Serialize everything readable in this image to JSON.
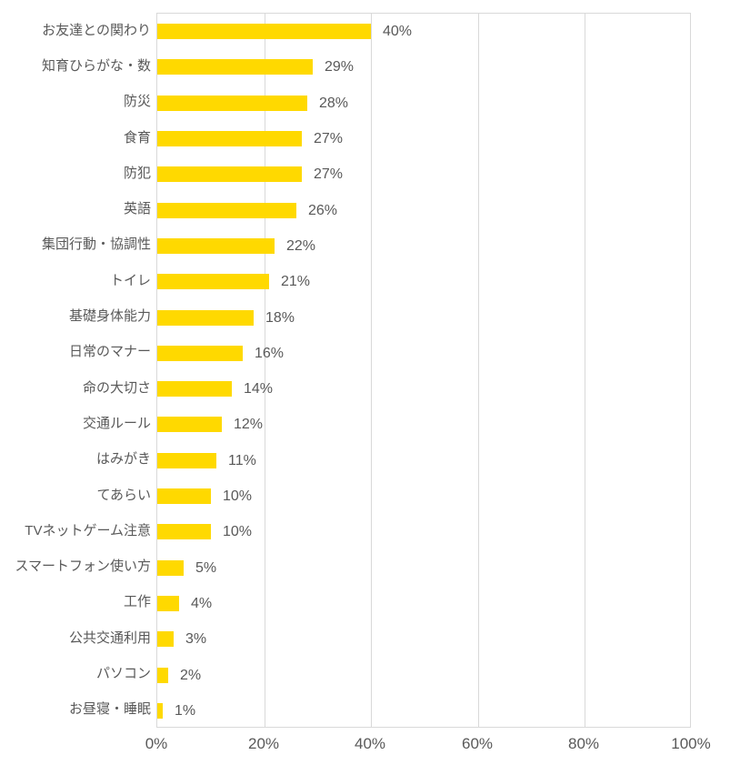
{
  "chart_data": {
    "type": "bar",
    "orientation": "horizontal",
    "title": "",
    "xlabel": "",
    "ylabel": "",
    "categories": [
      "お友達との関わり",
      "知育ひらがな・数",
      "防災",
      "食育",
      "防犯",
      "英語",
      "集団行動・協調性",
      "トイレ",
      "基礎身体能力",
      "日常のマナー",
      "命の大切さ",
      "交通ルール",
      "はみがき",
      "てあらい",
      "TVネットゲーム注意",
      "スマートフォン使い方",
      "工作",
      "公共交通利用",
      "パソコン",
      "お昼寝・睡眠"
    ],
    "values": [
      40,
      29,
      28,
      27,
      27,
      26,
      22,
      21,
      18,
      16,
      14,
      12,
      11,
      10,
      10,
      5,
      4,
      3,
      2,
      1
    ],
    "data_labels": [
      "40%",
      "29%",
      "28%",
      "27%",
      "27%",
      "26%",
      "22%",
      "21%",
      "18%",
      "16%",
      "14%",
      "12%",
      "11%",
      "10%",
      "10%",
      "5%",
      "4%",
      "3%",
      "2%",
      "1%"
    ],
    "x_ticks": [
      {
        "label": "0%",
        "value": 0
      },
      {
        "label": "20%",
        "value": 20
      },
      {
        "label": "40%",
        "value": 40
      },
      {
        "label": "60%",
        "value": 60
      },
      {
        "label": "80%",
        "value": 80
      },
      {
        "label": "100%",
        "value": 100
      }
    ],
    "xlim": [
      0,
      100
    ],
    "grid": true,
    "legend_position": "none",
    "colors": {
      "bar": "#ffd900",
      "gridline": "#d9d9d9",
      "text": "#595959",
      "background": "#ffffff"
    }
  }
}
